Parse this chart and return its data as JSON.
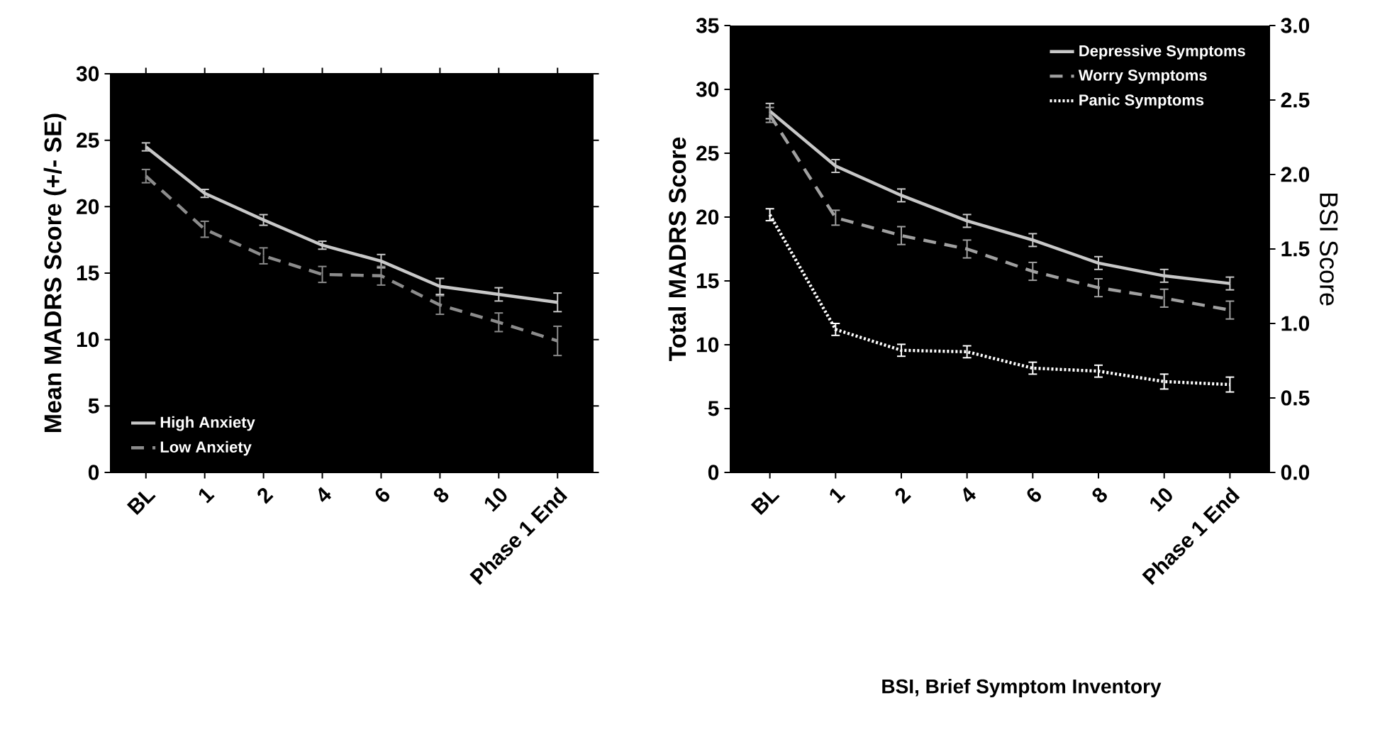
{
  "chart_data": [
    {
      "type": "line",
      "ylabel": "Mean MADRS Score (+/- SE)",
      "categories": [
        "BL",
        "1",
        "2",
        "4",
        "6",
        "8",
        "10",
        "Phase 1 End"
      ],
      "ylim": [
        0,
        30
      ],
      "yticks": [
        0,
        5,
        10,
        15,
        20,
        25,
        30
      ],
      "legend": "bottom left",
      "series": [
        {
          "name": "High Anxiety",
          "color": "#c8c8c8",
          "line_style": "solid",
          "values": [
            24.5,
            21.0,
            19.0,
            17.1,
            15.9,
            14.0,
            13.4,
            12.8
          ],
          "errors": [
            0.3,
            0.3,
            0.4,
            0.3,
            0.5,
            0.6,
            0.5,
            0.7
          ]
        },
        {
          "name": "Low Anxiety",
          "color": "#8c8c8c",
          "line_style": "dashed",
          "values": [
            22.3,
            18.3,
            16.3,
            14.9,
            14.8,
            12.6,
            11.3,
            9.9
          ],
          "errors": [
            0.5,
            0.6,
            0.6,
            0.6,
            0.7,
            0.7,
            0.7,
            1.1
          ]
        }
      ]
    },
    {
      "type": "line",
      "ylabel": "Total MADRS Score",
      "y2label": "BSI Score",
      "categories": [
        "BL",
        "1",
        "2",
        "4",
        "6",
        "8",
        "10",
        "Phase 1 End"
      ],
      "ylim": [
        0,
        35
      ],
      "yticks": [
        0,
        5,
        10,
        15,
        20,
        25,
        30,
        35
      ],
      "y2lim": [
        0,
        3
      ],
      "y2ticks": [
        {
          "value": 0,
          "label": "0.0"
        },
        {
          "value": 0.5,
          "label": "0.5"
        },
        {
          "value": 1,
          "label": "1.0"
        },
        {
          "value": 1.5,
          "label": "1.5"
        },
        {
          "value": 2,
          "label": "2.0"
        },
        {
          "value": 2.5,
          "label": "2.5"
        },
        {
          "value": 3,
          "label": "3.0"
        }
      ],
      "legend": "top right",
      "annotations": [
        "BSI, Brief Symptom Inventory"
      ],
      "series": [
        {
          "name": "Depressive Symptoms",
          "color": "#c8c8c8",
          "line_style": "solid",
          "values": [
            28.3,
            24.0,
            21.7,
            19.7,
            18.2,
            16.4,
            15.4,
            14.8
          ],
          "errors": [
            0.6,
            0.5,
            0.5,
            0.5,
            0.5,
            0.5,
            0.5,
            0.5
          ]
        },
        {
          "name": "Worry Symptoms",
          "color": "#a0a0a0",
          "line_style": "dashed",
          "axis": "y2",
          "values": [
            2.4,
            1.71,
            1.59,
            1.5,
            1.35,
            1.24,
            1.17,
            1.09
          ],
          "errors": [
            0.05,
            0.05,
            0.06,
            0.06,
            0.06,
            0.06,
            0.06,
            0.06
          ]
        },
        {
          "name": "Panic Symptoms",
          "color": "#ffffff",
          "line_style": "dotted",
          "axis": "y2",
          "values": [
            1.73,
            0.96,
            0.82,
            0.81,
            0.7,
            0.68,
            0.61,
            0.59
          ],
          "errors": [
            0.04,
            0.04,
            0.04,
            0.04,
            0.04,
            0.04,
            0.05,
            0.05
          ]
        }
      ]
    }
  ]
}
